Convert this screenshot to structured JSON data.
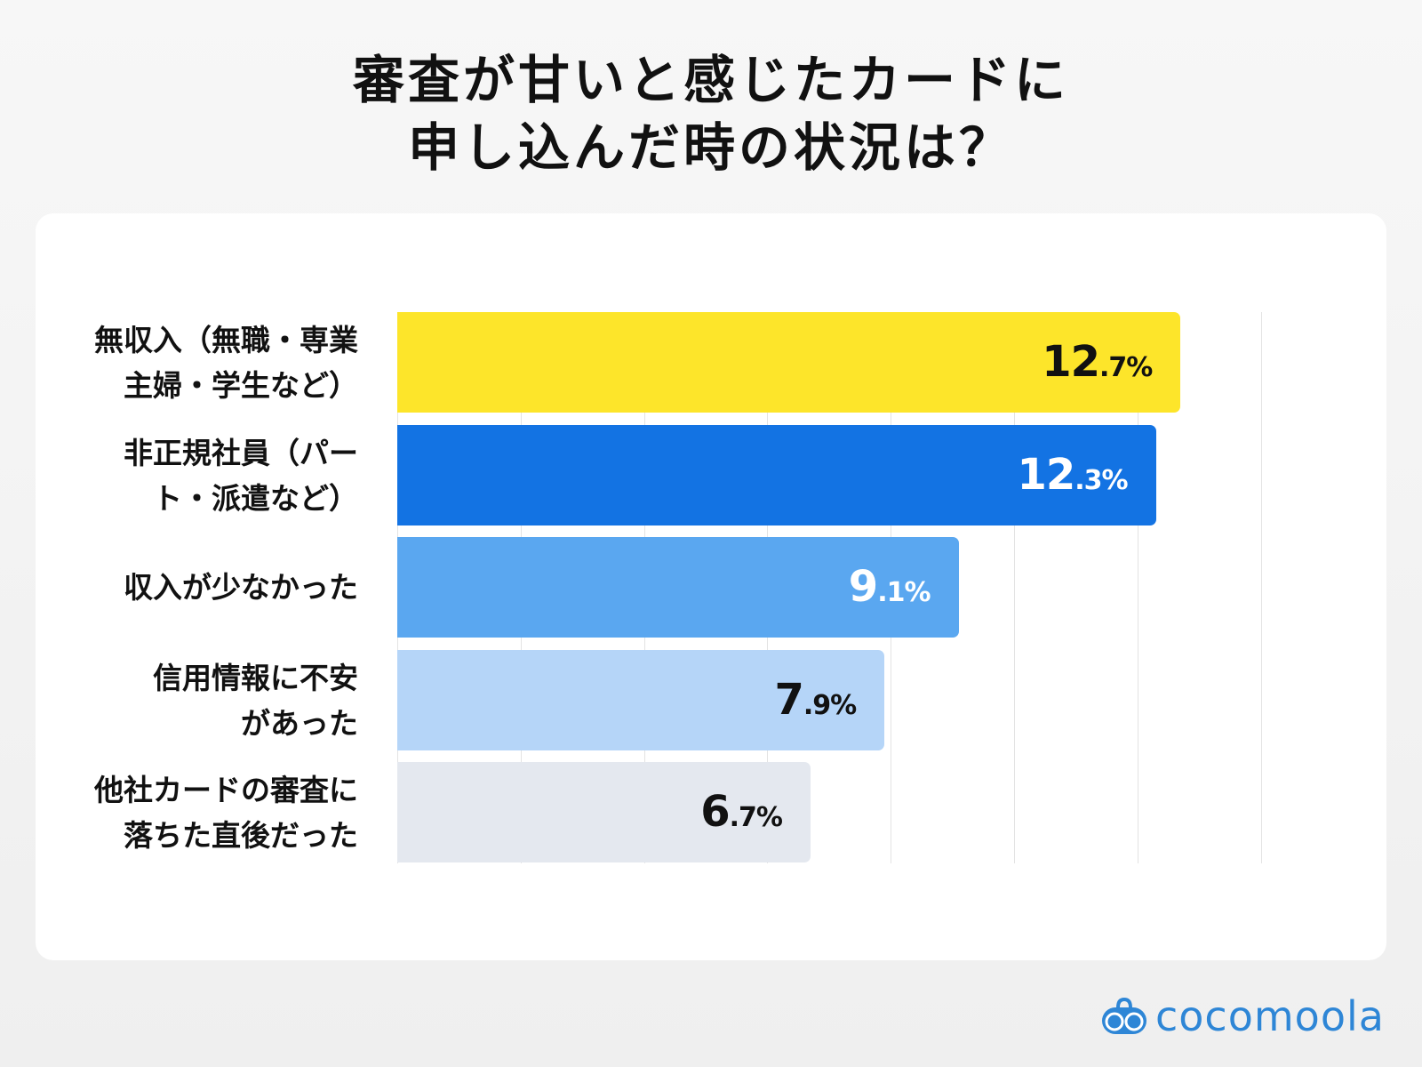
{
  "chart_data": {
    "type": "bar",
    "orientation": "horizontal",
    "title_lines": [
      "審査が甘いと感じたカードに",
      "申し込んだ時の状況は？"
    ],
    "categories": [
      [
        "無収入（無職・専業",
        "主婦・学生など）"
      ],
      [
        "非正規社員（パー",
        "ト・派遣など）"
      ],
      [
        "収入が少なかった"
      ],
      [
        "信用情報に不安",
        "があった"
      ],
      [
        "他社カードの審査に",
        "落ちた直後だった"
      ]
    ],
    "values": [
      12.7,
      12.3,
      9.1,
      7.9,
      6.7
    ],
    "unit": "%",
    "bar_colors": [
      "#fde52a",
      "#1373e3",
      "#5aa7f0",
      "#b5d5f8",
      "#e4e8ef"
    ],
    "label_colors": [
      "#111111",
      "#ffffff",
      "#ffffff",
      "#111111",
      "#111111"
    ],
    "xlim": [
      0,
      14
    ],
    "grid": true,
    "grid_step": 2
  },
  "brand": {
    "name": "cocomoola",
    "color": "#2e86d6",
    "icon": "boombox-icon"
  }
}
